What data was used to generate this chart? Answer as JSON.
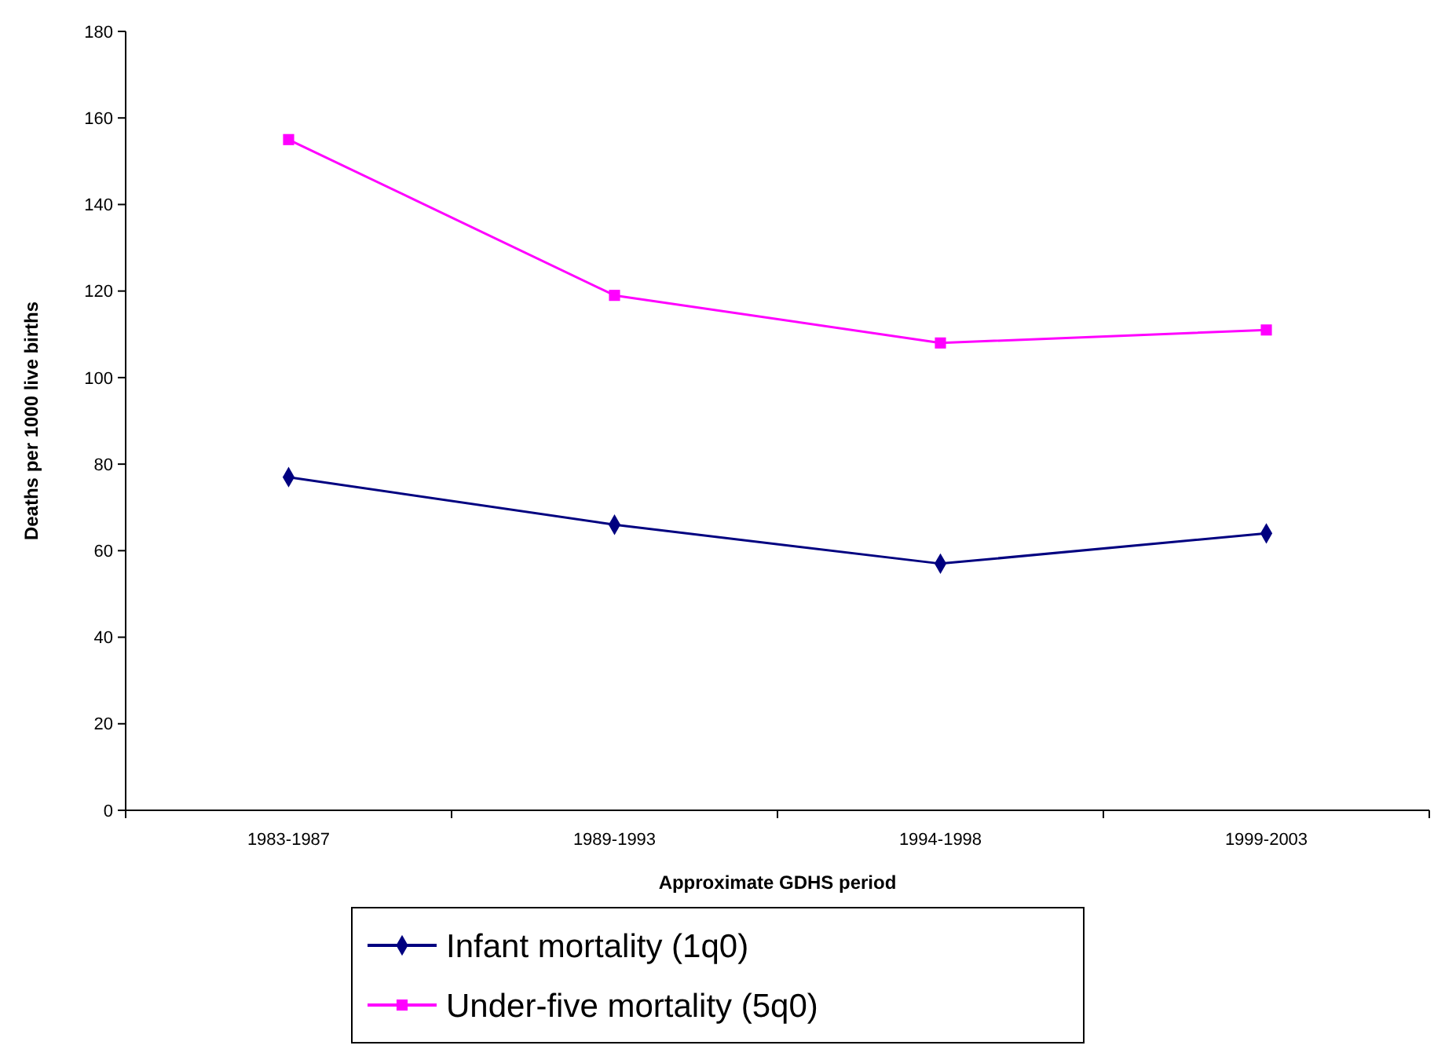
{
  "chart_data": {
    "type": "line",
    "xlabel": "Approximate GDHS period",
    "ylabel": "Deaths per 1000 live births",
    "categories": [
      "1983-1987",
      "1989-1993",
      "1994-1998",
      "1999-2003"
    ],
    "series": [
      {
        "name": "Infant mortality (1q0)",
        "color": "#000080",
        "marker": "diamond",
        "values": [
          77,
          66,
          57,
          64
        ]
      },
      {
        "name": "Under-five mortality (5q0)",
        "color": "#ff00ff",
        "marker": "square",
        "values": [
          155,
          119,
          108,
          111
        ]
      }
    ],
    "ylim": [
      0,
      180
    ],
    "yticks": [
      0,
      20,
      40,
      60,
      80,
      100,
      120,
      140,
      160,
      180
    ],
    "grid": false,
    "legend": "bottom"
  }
}
